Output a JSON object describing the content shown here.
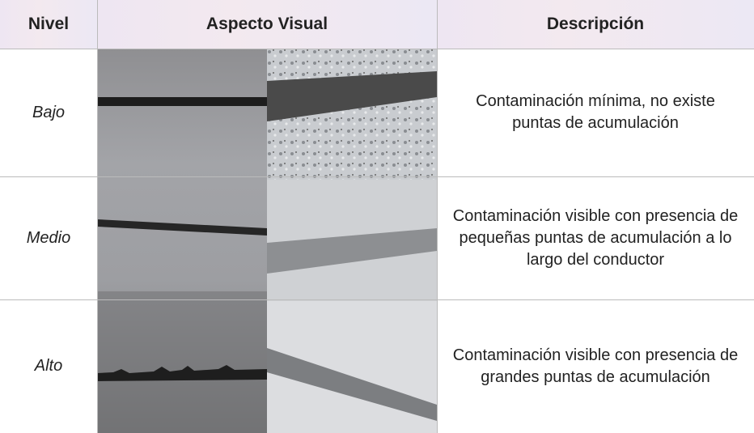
{
  "table": {
    "header": [
      "Nivel",
      "Aspecto Visual",
      "Descripción"
    ],
    "rows": [
      {
        "level": "Bajo",
        "description": "Contaminación mínima, no existe puntas de acumulación"
      },
      {
        "level": "Medio",
        "description": "Contaminación visible con presencia de pequeñas puntas de acumulación a lo largo del conductor"
      },
      {
        "level": "Alto",
        "description": "Contaminación visible con presencia de grandes puntas de acumulación"
      }
    ]
  }
}
